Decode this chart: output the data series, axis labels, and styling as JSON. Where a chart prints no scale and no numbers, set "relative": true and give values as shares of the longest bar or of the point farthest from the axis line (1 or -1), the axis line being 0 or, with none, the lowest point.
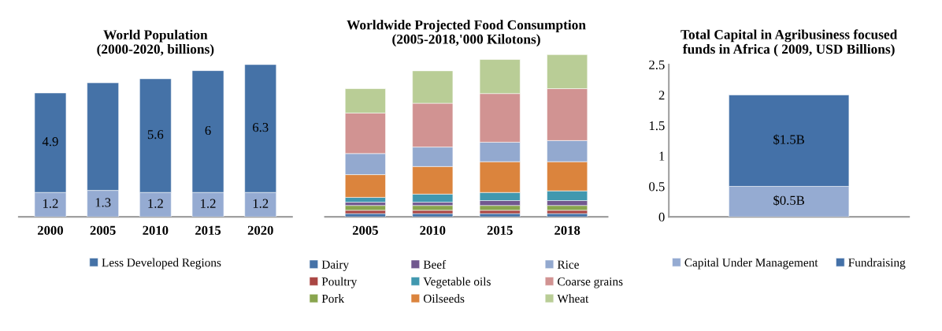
{
  "chart_data": [
    {
      "type": "bar",
      "title": "World Population\n(2000-2020, billions)",
      "categories": [
        "2000",
        "2005",
        "2010",
        "2015",
        "2020"
      ],
      "stacked": true,
      "tick_labels": "x",
      "data_labels": false,
      "legend": "bottom",
      "grid": false,
      "series": [
        {
          "color": "#95abd2",
          "values": [
            1.2,
            1.3,
            1.2,
            1.2,
            1.2
          ],
          "value_labels": [
            "1.2",
            "1.3",
            "1.2",
            "1.2",
            "1.2"
          ]
        },
        {
          "name": "Less Developed Regions",
          "color": "#4572a7",
          "values": [
            4.9,
            5.3,
            5.6,
            6,
            6.3
          ],
          "value_labels": [
            "4.9",
            null,
            "5.6",
            "6",
            "6.3"
          ]
        }
      ]
    },
    {
      "type": "bar",
      "title": "Worldwide Projected Food Consumption\n(2005-2018,'000 Kilotons)",
      "categories": [
        "2005",
        "2010",
        "2015",
        "2018"
      ],
      "stacked": true,
      "relative": true,
      "legend": "bottom",
      "grid": false,
      "series": [
        {
          "name": "Dairy",
          "color": "#4572a7",
          "values": [
            0.02,
            0.02,
            0.02,
            0.02
          ]
        },
        {
          "name": "Poultry",
          "color": "#aa4643",
          "values": [
            0.02,
            0.02,
            0.02,
            0.02
          ]
        },
        {
          "name": "Pork",
          "color": "#89a54e",
          "values": [
            0.03,
            0.03,
            0.03,
            0.03
          ]
        },
        {
          "name": "Beef",
          "color": "#71588f",
          "values": [
            0.02,
            0.02,
            0.03,
            0.03
          ]
        },
        {
          "name": "Vegetable oils",
          "color": "#4198af",
          "values": [
            0.03,
            0.05,
            0.05,
            0.06
          ]
        },
        {
          "name": "Oilseeds",
          "color": "#db843d",
          "values": [
            0.14,
            0.17,
            0.19,
            0.18
          ]
        },
        {
          "name": "Rice",
          "color": "#93a9cf",
          "values": [
            0.13,
            0.12,
            0.12,
            0.13
          ]
        },
        {
          "name": "Coarse grains",
          "color": "#d19392",
          "values": [
            0.25,
            0.27,
            0.3,
            0.32
          ]
        },
        {
          "name": "Wheat",
          "color": "#b9cd96",
          "values": [
            0.15,
            0.2,
            0.21,
            0.21
          ]
        }
      ]
    },
    {
      "type": "bar",
      "title": "Total Capital in Agribusiness focused\nfunds in Africa ( 2009, USD Billions)",
      "categories": [
        null
      ],
      "stacked": true,
      "ylim": [
        0,
        2.5
      ],
      "yticks": [
        0,
        0.5,
        1,
        1.5,
        2,
        2.5
      ],
      "tick_labels": "y",
      "legend": "bottom",
      "grid": false,
      "series": [
        {
          "name": "Capital Under Management",
          "color": "#95abd2",
          "values": [
            0.5
          ],
          "value_labels": [
            "$0.5B"
          ]
        },
        {
          "name": "Fundraising",
          "color": "#4471a8",
          "values": [
            1.5
          ],
          "value_labels": [
            "$1.5B"
          ]
        }
      ]
    }
  ]
}
